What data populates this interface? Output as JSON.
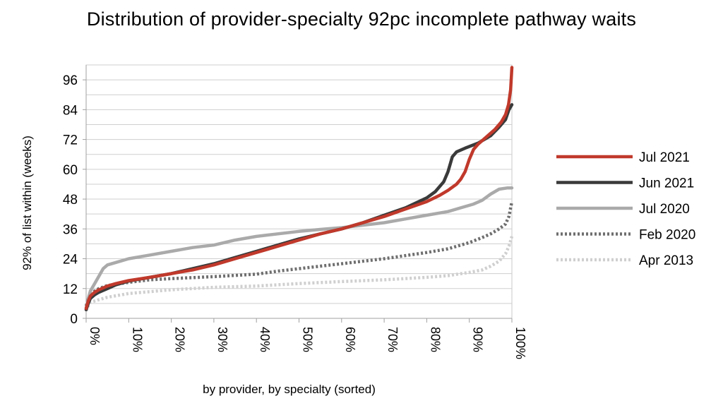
{
  "chart_data": {
    "type": "line",
    "title": "Distribution of provider-specialty 92pc incomplete pathway waits",
    "xlabel": "by provider, by specialty (sorted)",
    "ylabel": "92% of list within (weeks)",
    "xlim": [
      0,
      100
    ],
    "ylim": [
      0,
      102
    ],
    "x_ticks": [
      0,
      10,
      20,
      30,
      40,
      50,
      60,
      70,
      80,
      90,
      100
    ],
    "x_tick_labels": [
      "0%",
      "10%",
      "20%",
      "30%",
      "40%",
      "50%",
      "60%",
      "70%",
      "80%",
      "90%",
      "100%"
    ],
    "y_ticks": [
      0,
      12,
      24,
      36,
      48,
      60,
      72,
      84,
      96
    ],
    "y_tick_labels": [
      "0",
      "12",
      "24",
      "36",
      "48",
      "60",
      "72",
      "84",
      "96"
    ],
    "grid": "horizontal",
    "legend_position": "right",
    "series": [
      {
        "name": "Jul 2021",
        "color": "#c0392b",
        "style": "solid",
        "points": [
          [
            0,
            4
          ],
          [
            0.5,
            7
          ],
          [
            1,
            9
          ],
          [
            2,
            10.5
          ],
          [
            3,
            11.5
          ],
          [
            5,
            13
          ],
          [
            7,
            14
          ],
          [
            10,
            15.2
          ],
          [
            15,
            16.5
          ],
          [
            20,
            18
          ],
          [
            25,
            19.5
          ],
          [
            30,
            21.5
          ],
          [
            35,
            24
          ],
          [
            40,
            26.5
          ],
          [
            45,
            29
          ],
          [
            50,
            31.5
          ],
          [
            55,
            34
          ],
          [
            60,
            36
          ],
          [
            65,
            38.5
          ],
          [
            70,
            41
          ],
          [
            75,
            44
          ],
          [
            80,
            47
          ],
          [
            83,
            49.5
          ],
          [
            85,
            51.5
          ],
          [
            87,
            54
          ],
          [
            88,
            56
          ],
          [
            89,
            59
          ],
          [
            90,
            64
          ],
          [
            91,
            68
          ],
          [
            92,
            70
          ],
          [
            94,
            73
          ],
          [
            96,
            76
          ],
          [
            97.5,
            79
          ],
          [
            98.5,
            82
          ],
          [
            99.2,
            86
          ],
          [
            99.7,
            92
          ],
          [
            100,
            101
          ]
        ]
      },
      {
        "name": "Jun 2021",
        "color": "#3a3a3a",
        "style": "solid",
        "points": [
          [
            0,
            3.5
          ],
          [
            0.5,
            6
          ],
          [
            1,
            8
          ],
          [
            2,
            9.5
          ],
          [
            3,
            10.5
          ],
          [
            5,
            12
          ],
          [
            7,
            13.5
          ],
          [
            10,
            15
          ],
          [
            15,
            16.5
          ],
          [
            20,
            18
          ],
          [
            25,
            20
          ],
          [
            30,
            22
          ],
          [
            35,
            24.5
          ],
          [
            40,
            27
          ],
          [
            45,
            29.5
          ],
          [
            50,
            32
          ],
          [
            55,
            34
          ],
          [
            60,
            36
          ],
          [
            65,
            38.5
          ],
          [
            70,
            41.5
          ],
          [
            75,
            44.5
          ],
          [
            80,
            48.5
          ],
          [
            82,
            51
          ],
          [
            84,
            55
          ],
          [
            85,
            59
          ],
          [
            86,
            65
          ],
          [
            87,
            67
          ],
          [
            89,
            68.5
          ],
          [
            92,
            70.5
          ],
          [
            95,
            73.5
          ],
          [
            97,
            77
          ],
          [
            98.5,
            80
          ],
          [
            99.3,
            84
          ],
          [
            100,
            86
          ]
        ]
      },
      {
        "name": "Jul 2020",
        "color": "#aaaaaa",
        "style": "solid",
        "points": [
          [
            0,
            4
          ],
          [
            0.5,
            8
          ],
          [
            1,
            11
          ],
          [
            2,
            14
          ],
          [
            3,
            17
          ],
          [
            4,
            20
          ],
          [
            5,
            21.5
          ],
          [
            7,
            22.5
          ],
          [
            10,
            24
          ],
          [
            15,
            25.5
          ],
          [
            20,
            27
          ],
          [
            25,
            28.5
          ],
          [
            30,
            29.5
          ],
          [
            35,
            31.5
          ],
          [
            40,
            33
          ],
          [
            45,
            34
          ],
          [
            50,
            35
          ],
          [
            55,
            35.8
          ],
          [
            60,
            36.5
          ],
          [
            65,
            37.5
          ],
          [
            70,
            38.5
          ],
          [
            75,
            40
          ],
          [
            80,
            41.5
          ],
          [
            85,
            43
          ],
          [
            88,
            44.5
          ],
          [
            91,
            46
          ],
          [
            93,
            47.5
          ],
          [
            95,
            50
          ],
          [
            97,
            52
          ],
          [
            99,
            52.5
          ],
          [
            100,
            52.5
          ]
        ]
      },
      {
        "name": "Feb 2020",
        "color": "#6e6e6e",
        "style": "dotted",
        "points": [
          [
            0,
            5
          ],
          [
            0.5,
            8
          ],
          [
            1,
            10
          ],
          [
            3,
            12
          ],
          [
            5,
            13.2
          ],
          [
            10,
            14.5
          ],
          [
            15,
            15.5
          ],
          [
            20,
            16
          ],
          [
            30,
            16.8
          ],
          [
            40,
            17.8
          ],
          [
            45,
            19
          ],
          [
            50,
            20
          ],
          [
            60,
            22
          ],
          [
            70,
            24
          ],
          [
            80,
            26.5
          ],
          [
            85,
            28
          ],
          [
            90,
            30.5
          ],
          [
            93,
            32.5
          ],
          [
            95,
            34
          ],
          [
            97,
            36
          ],
          [
            98.5,
            38
          ],
          [
            99.3,
            41
          ],
          [
            100,
            47
          ]
        ]
      },
      {
        "name": "Apr 2013",
        "color": "#cfcfcf",
        "style": "dotted",
        "points": [
          [
            0,
            3
          ],
          [
            0.5,
            5
          ],
          [
            1,
            6.5
          ],
          [
            3,
            7.5
          ],
          [
            5,
            8.5
          ],
          [
            10,
            10
          ],
          [
            20,
            11.5
          ],
          [
            30,
            12.5
          ],
          [
            40,
            13
          ],
          [
            50,
            14
          ],
          [
            60,
            14.8
          ],
          [
            70,
            15.5
          ],
          [
            80,
            16.5
          ],
          [
            85,
            17.2
          ],
          [
            90,
            18.5
          ],
          [
            93,
            19.5
          ],
          [
            95,
            21
          ],
          [
            97,
            23
          ],
          [
            98.5,
            26
          ],
          [
            99.3,
            29
          ],
          [
            100,
            33
          ]
        ]
      }
    ]
  }
}
